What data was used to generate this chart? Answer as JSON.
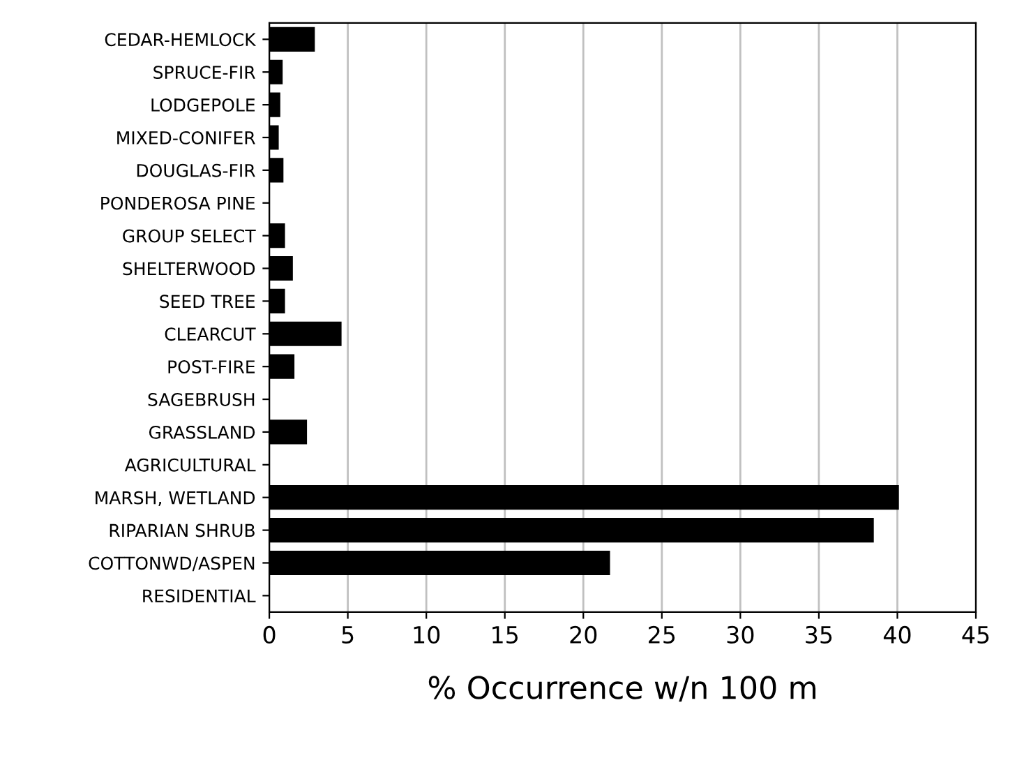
{
  "chart_data": {
    "type": "bar",
    "orientation": "horizontal",
    "xlabel": "% Occurrence w/n 100 m",
    "categories": [
      "CEDAR-HEMLOCK",
      "SPRUCE-FIR",
      "LODGEPOLE",
      "MIXED-CONIFER",
      "DOUGLAS-FIR",
      "PONDEROSA PINE",
      "GROUP SELECT",
      "SHELTERWOOD",
      "SEED TREE",
      "CLEARCUT",
      "POST-FIRE",
      "SAGEBRUSH",
      "GRASSLAND",
      "AGRICULTURAL",
      "MARSH, WETLAND",
      "RIPARIAN SHRUB",
      "COTTONWD/ASPEN",
      "RESIDENTIAL"
    ],
    "values": [
      2.9,
      0.85,
      0.7,
      0.6,
      0.9,
      0,
      1.0,
      1.5,
      1.0,
      4.6,
      1.6,
      0,
      2.4,
      0,
      40.1,
      38.5,
      21.7,
      0
    ],
    "color": "#000000",
    "xlim": [
      0,
      45
    ],
    "xticks": [
      0,
      5,
      10,
      15,
      20,
      25,
      30,
      35,
      40,
      45
    ],
    "grid": "x"
  }
}
